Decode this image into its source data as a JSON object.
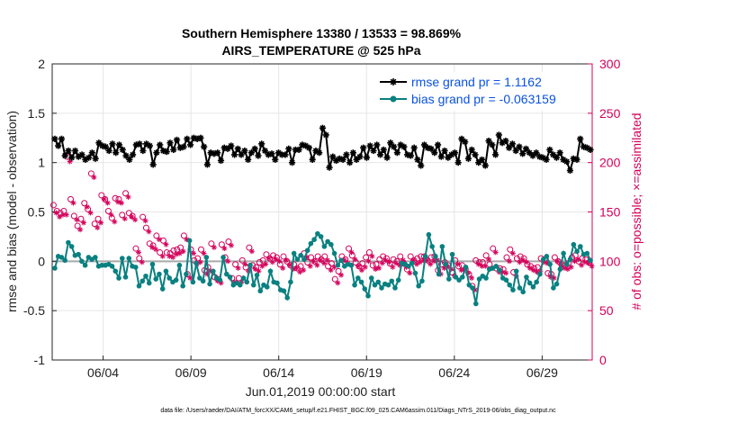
{
  "chart_data": {
    "type": "line",
    "title": "Southern Hemisphere 13380 / 13533 = 98.869%",
    "subtitle": "AIRS_TEMPERATURE @ 525 hPa",
    "xlabel": "Jun.01,2019 00:00:00 start",
    "ylabel": "rmse and bias (model - observation)",
    "y2label": "# of obs: o=possible; ×=assimilated",
    "footer": "data file: /Users/raeder/DAI/ATM_forcXX/CAM6_setup/f.e21.FHIST_BGC.f09_025.CAM6assim.011/Diags_NTrS_2019-06/obs_diag_output.nc",
    "ylim": [
      -1,
      2
    ],
    "y2lim": [
      0,
      300
    ],
    "xlim": [
      0.1,
      30.85
    ],
    "x_tick_labels": [
      "06/04",
      "06/09",
      "06/14",
      "06/19",
      "06/24",
      "06/29"
    ],
    "x_tick_positions": [
      3,
      8,
      13,
      18,
      23,
      28
    ],
    "y_tick_labels": [
      "-1",
      "-0.5",
      "0",
      "0.5",
      "1",
      "1.5",
      "2"
    ],
    "y_tick_values": [
      -1,
      -0.5,
      0,
      0.5,
      1,
      1.5,
      2
    ],
    "y2_tick_labels": [
      "0",
      "50",
      "100",
      "150",
      "200",
      "250",
      "300"
    ],
    "y2_tick_values": [
      0,
      50,
      100,
      150,
      200,
      250,
      300
    ],
    "grid": true,
    "zero_line": true,
    "legend_position": "top-right",
    "series": [
      {
        "name": "rmse grand pr = 1.1162",
        "color": "#000000",
        "marker": "asterisk",
        "values": [
          1.24,
          1.17,
          1.24,
          1.07,
          1.12,
          1.05,
          1.12,
          1.06,
          1.08,
          1.03,
          1.05,
          1.1,
          1.04,
          1.2,
          1.17,
          1.16,
          1.12,
          1.19,
          1.1,
          1.18,
          1.13,
          1.07,
          1.03,
          1.08,
          1.18,
          1.19,
          1.12,
          1.19,
          1.17,
          0.98,
          1.1,
          1.18,
          1.12,
          1.11,
          1.2,
          1.13,
          1.23,
          1.15,
          1.16,
          1.24,
          1.18,
          1.25,
          1.24,
          1.25,
          1.16,
          0.98,
          1.1,
          1.09,
          1.1,
          1.02,
          1.15,
          1.14,
          1.17,
          1.08,
          1.14,
          1.08,
          1.12,
          1.03,
          1.1,
          1.14,
          1.07,
          1.19,
          1.12,
          1.08,
          1.09,
          1.03,
          1.1,
          1.08,
          1.08,
          1.14,
          1.0,
          1.13,
          1.13,
          1.18,
          1.17,
          1.15,
          1.03,
          1.12,
          1.1,
          1.35,
          1.28,
          0.95,
          1.06,
          1.02,
          1.04,
          1.03,
          1.08,
          1.0,
          1.1,
          1.03,
          1.06,
          1.15,
          1.05,
          1.17,
          1.12,
          1.18,
          1.08,
          1.13,
          1.05,
          1.2,
          1.16,
          1.1,
          1.18,
          1.16,
          1.08,
          1.07,
          1.15,
          1.03,
          0.97,
          1.18,
          1.15,
          1.14,
          1.1,
          1.18,
          1.06,
          1.12,
          1.05,
          1.08,
          1.1,
          1.0,
          1.24,
          1.21,
          1.04,
          1.13,
          1.08,
          1.0,
          1.03,
          0.97,
          1.22,
          1.18,
          1.08,
          1.28,
          1.2,
          1.22,
          1.15,
          1.19,
          1.12,
          1.16,
          1.09,
          1.14,
          1.1,
          1.07,
          1.1,
          1.06,
          1.05,
          1.03,
          1.13,
          1.08,
          1.05,
          1.1,
          1.03,
          1.01,
          0.92,
          1.04,
          1.03,
          1.24,
          1.16,
          1.15,
          1.13
        ]
      },
      {
        "name": "bias grand pr = -0.063159",
        "color": "#0a8080",
        "marker": "dot",
        "values": [
          -0.07,
          0.05,
          0.04,
          0.01,
          0.19,
          0.15,
          0.06,
          0.07,
          0.0,
          -0.04,
          0.04,
          0.02,
          0.04,
          -0.05,
          -0.04,
          -0.04,
          -0.03,
          -0.05,
          -0.1,
          -0.17,
          0.03,
          -0.16,
          0.03,
          -0.05,
          -0.06,
          -0.25,
          -0.2,
          -0.15,
          -0.22,
          -0.03,
          -0.18,
          -0.13,
          -0.28,
          -0.1,
          -0.17,
          -0.21,
          -0.19,
          -0.04,
          -0.25,
          -0.13,
          0.21,
          -0.21,
          -0.02,
          -0.17,
          -0.2,
          0.04,
          -0.23,
          -0.1,
          -0.17,
          -0.19,
          0.04,
          -0.13,
          -0.16,
          -0.24,
          -0.22,
          -0.24,
          -0.17,
          -0.21,
          -0.04,
          -0.24,
          -0.14,
          -0.3,
          -0.24,
          -0.26,
          -0.1,
          -0.21,
          -0.22,
          -0.29,
          -0.3,
          -0.37,
          -0.21,
          0.08,
          0.02,
          0.06,
          0.02,
          0.11,
          0.18,
          0.22,
          0.28,
          0.25,
          0.15,
          0.2,
          0.17,
          0.08,
          -0.04,
          0.01,
          -0.05,
          -0.03,
          -0.04,
          -0.24,
          -0.17,
          -0.21,
          -0.28,
          -0.35,
          -0.17,
          -0.24,
          -0.21,
          -0.27,
          -0.23,
          -0.24,
          -0.2,
          -0.27,
          -0.19,
          -0.02,
          -0.03,
          -0.05,
          -0.02,
          -0.12,
          -0.25,
          -0.2,
          0.05,
          0.27,
          0.15,
          0.05,
          -0.13,
          0.15,
          -0.03,
          -0.18,
          0.07,
          -0.16,
          -0.19,
          -0.16,
          -0.06,
          -0.24,
          -0.27,
          -0.43,
          -0.18,
          -0.15,
          -0.17,
          -0.08,
          -0.07,
          -0.05,
          -0.09,
          -0.17,
          -0.19,
          -0.24,
          -0.29,
          -0.1,
          -0.27,
          -0.31,
          -0.16,
          -0.22,
          -0.26,
          -0.21,
          -0.13,
          0.02,
          0.05,
          -0.03,
          -0.27,
          -0.23,
          -0.08,
          0.08,
          -0.03,
          0.02,
          0.17,
          0.1,
          0.15,
          0.07,
          0.08,
          0.01
        ]
      },
      {
        "name": "obs possible",
        "color": "#d4005a",
        "marker": "circle",
        "axis": "right",
        "values": [
          156,
          150,
          148,
          150,
          205,
          162,
          145,
          135,
          142,
          158,
          152,
          188,
          137,
          142,
          166,
          162,
          150,
          143,
          163,
          162,
          146,
          168,
          148,
          145,
          112,
          102,
          144,
          133,
          117,
          115,
          125,
          108,
          120,
          108,
          107,
          110,
          111,
          113,
          125,
          86,
          111,
          100,
          102,
          111,
          90,
          93,
          117,
          83,
          81,
          116,
          103,
          119,
          82,
          96,
          82,
          100,
          93,
          113,
          95,
          93,
          98,
          100,
          106,
          102,
          105,
          103,
          96,
          104,
          99,
          95,
          96,
          92,
          94,
          107,
          98,
          103,
          99,
          104,
          101,
          104,
          94,
          97,
          81,
          89,
          104,
          101,
          112,
          105,
          98,
          94,
          97,
          103,
          108,
          95,
          96,
          101,
          104,
          102,
          97,
          101,
          99,
          104,
          97,
          91,
          104,
          100,
          102,
          104,
          104,
          100,
          103,
          104,
          90,
          96,
          98,
          95,
          88,
          100,
          94,
          95,
          91,
          86,
          74,
          100,
          98,
          98,
          105,
          96,
          112,
          92,
          92,
          91,
          103,
          111,
          88,
          102,
          104,
          102,
          96,
          94,
          92,
          93,
          102,
          101,
          87,
          86,
          103,
          99,
          96,
          95,
          97,
          103,
          105,
          99,
          102,
          101,
          98
        ]
      },
      {
        "name": "obs assimilated",
        "color": "#d4005a",
        "marker": "x",
        "axis": "right",
        "values": [
          150,
          146,
          148,
          148,
          202,
          160,
          143,
          133,
          140,
          156,
          150,
          186,
          135,
          140,
          164,
          160,
          148,
          141,
          161,
          160,
          144,
          166,
          146,
          143,
          110,
          100,
          142,
          131,
          115,
          113,
          123,
          106,
          118,
          106,
          105,
          108,
          109,
          111,
          123,
          84,
          109,
          98,
          100,
          109,
          88,
          91,
          115,
          81,
          79,
          114,
          101,
          117,
          80,
          94,
          80,
          98,
          91,
          111,
          93,
          91,
          96,
          98,
          104,
          100,
          103,
          101,
          94,
          102,
          97,
          93,
          94,
          90,
          92,
          105,
          96,
          101,
          97,
          102,
          99,
          102,
          92,
          95,
          79,
          87,
          102,
          99,
          110,
          103,
          96,
          92,
          95,
          101,
          106,
          93,
          94,
          99,
          102,
          100,
          95,
          99,
          97,
          102,
          95,
          89,
          102,
          98,
          100,
          102,
          102,
          98,
          101,
          102,
          88,
          94,
          96,
          93,
          86,
          98,
          92,
          93,
          89,
          84,
          72,
          98,
          96,
          96,
          103,
          94,
          110,
          90,
          90,
          89,
          101,
          109,
          86,
          100,
          102,
          100,
          94,
          92,
          90,
          91,
          100,
          99,
          85,
          84,
          101,
          97,
          94,
          93,
          95,
          101,
          103,
          97,
          100,
          99,
          96
        ]
      }
    ],
    "legend": [
      {
        "label": "rmse grand pr = 1.1162",
        "color": "#000000"
      },
      {
        "label": "bias grand pr = -0.063159",
        "color": "#0a8080"
      }
    ]
  }
}
